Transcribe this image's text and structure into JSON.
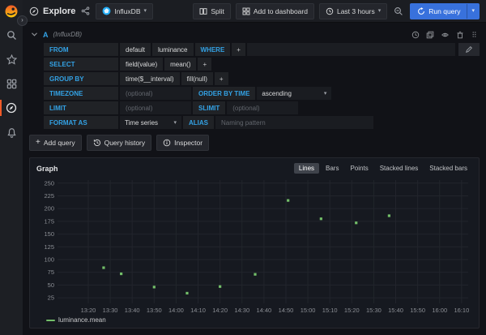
{
  "colors": {
    "accent_blue": "#33a2e5",
    "run_button_blue": "#3871dc",
    "series_green": "#73bf69",
    "active_indicator_orange": "#f05a28"
  },
  "topnav": {
    "title": "Explore",
    "datasource_name": "InfluxDB",
    "split": "Split",
    "add_to_dashboard": "Add to dashboard",
    "time_range": "Last 3 hours",
    "run_query": "Run query"
  },
  "query_editor": {
    "ref_id": "A",
    "datasource_hint": "(InfluxDB)",
    "from": {
      "label": "FROM",
      "policy": "default",
      "measurement": "luminance",
      "where": "WHERE",
      "add": "+"
    },
    "select": {
      "label": "SELECT",
      "field": "field(value)",
      "fn": "mean()",
      "add": "+"
    },
    "group_by": {
      "label": "GROUP BY",
      "time": "time($__interval)",
      "fill": "fill(null)",
      "add": "+"
    },
    "timezone": {
      "label": "TIMEZONE",
      "placeholder": "(optional)"
    },
    "order_by": {
      "label": "ORDER BY TIME",
      "value": "ascending"
    },
    "limit": {
      "label": "LIMIT",
      "placeholder": "(optional)"
    },
    "slimit": {
      "label": "SLIMIT",
      "placeholder": "(optional)"
    },
    "format_as": {
      "label": "FORMAT AS",
      "value": "Time series"
    },
    "alias": {
      "label": "ALIAS",
      "placeholder": "Naming pattern"
    },
    "actions": {
      "add_query": "Add query",
      "query_history": "Query history",
      "inspector": "Inspector"
    }
  },
  "graph_panel": {
    "title": "Graph",
    "modes": [
      "Lines",
      "Bars",
      "Points",
      "Stacked lines",
      "Stacked bars"
    ],
    "active_mode": "Lines"
  },
  "chart_data": {
    "type": "scatter",
    "title": "Graph",
    "grid": true,
    "legend_position": "bottom-left",
    "x_ticks": [
      "13:20",
      "13:30",
      "13:40",
      "13:50",
      "14:00",
      "14:10",
      "14:20",
      "14:30",
      "14:40",
      "14:50",
      "15:00",
      "15:10",
      "15:20",
      "15:30",
      "15:40",
      "15:50",
      "16:00",
      "16:10"
    ],
    "y_ticks": [
      25,
      50,
      75,
      100,
      125,
      150,
      175,
      200,
      225,
      250
    ],
    "xlim": [
      "13:06",
      "16:13"
    ],
    "ylim": [
      14,
      256
    ],
    "series": [
      {
        "name": "luminance.mean",
        "color": "#73bf69",
        "points": [
          {
            "t": "13:27",
            "v": 84
          },
          {
            "t": "13:35",
            "v": 72
          },
          {
            "t": "13:50",
            "v": 46
          },
          {
            "t": "14:05",
            "v": 34
          },
          {
            "t": "14:20",
            "v": 47
          },
          {
            "t": "14:36",
            "v": 71
          },
          {
            "t": "14:51",
            "v": 216
          },
          {
            "t": "15:06",
            "v": 180
          },
          {
            "t": "15:22",
            "v": 172
          },
          {
            "t": "15:37",
            "v": 186
          }
        ]
      }
    ]
  }
}
